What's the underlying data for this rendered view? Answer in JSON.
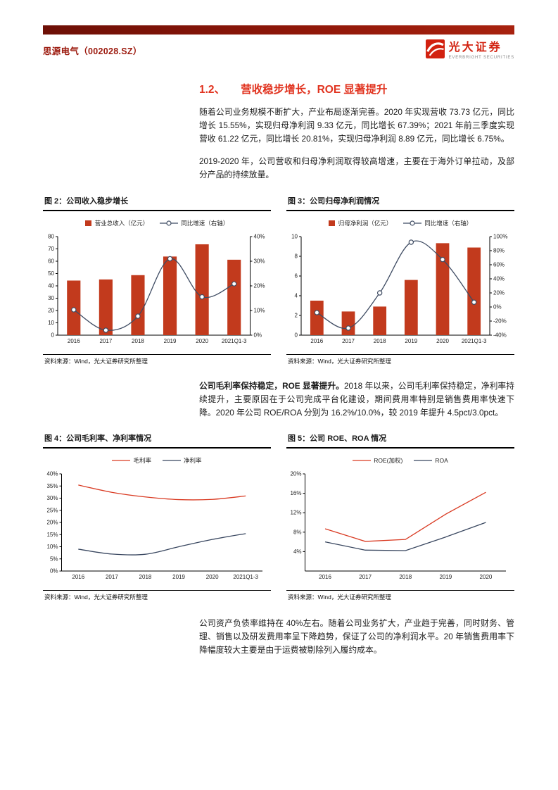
{
  "header": {
    "stock_name": "思源电气（002028.SZ）",
    "brand_name": "光大证券",
    "brand_subtitle": "EVERBRIGHT SECURITIES",
    "accent_color": "#8f1709",
    "brand_color": "#d2210f"
  },
  "section": {
    "number": "1.2、",
    "title": "营收稳步增长，ROE 显著提升"
  },
  "paragraphs": [
    "随着公司业务规模不断扩大，产业布局逐渐完善。2020 年实现营收 73.73 亿元，同比增长 15.55%，实现归母净利润 9.33 亿元，同比增长 67.39%；2021 年前三季度实现营收 61.22 亿元，同比增长 20.81%，实现归母净利润 8.89 亿元，同比增长 6.75%。",
    "2019-2020 年，公司营收和归母净利润取得较高增速，主要在于海外订单拉动，及部分产品的持续放量。"
  ],
  "mid_paragraph": {
    "bold": "公司毛利率保持稳定，ROE 显著提升。",
    "rest": "2018 年以来，公司毛利率保持稳定，净利率持续提升，主要原因在于公司完成平台化建设，期间费用率特别是销售费用率快速下降。2020 年公司 ROE/ROA 分别为 16.2%/10.0%，较 2019 年提升 4.5pct/3.0pct。"
  },
  "bottom_paragraph": "公司资产负债率维持在 40%左右。随着公司业务扩大，产业趋于完善，同时财务、管理、销售以及研发费用率呈下降趋势，保证了公司的净利润水平。20 年销售费用率下降幅度较大主要是由于运费被剔除列入履约成本。",
  "source_note": "资料来源：Wind，光大证券研究所整理",
  "chart_data": [
    {
      "figure_label": "图 2：公司收入稳步增长",
      "type": "bar+line",
      "categories": [
        "2016",
        "2017",
        "2018",
        "2019",
        "2020",
        "2021Q1-3"
      ],
      "series": [
        {
          "name": "营业总收入（亿元）",
          "kind": "bar",
          "axis": "left",
          "color": "#c23a1d",
          "values": [
            44.3,
            45.2,
            48.7,
            63.8,
            73.73,
            61.22
          ]
        },
        {
          "name": "同比增速（右轴）",
          "kind": "line",
          "axis": "right",
          "color": "#3f4c63",
          "marker": "circle",
          "smooth": true,
          "values": [
            10.3,
            2.0,
            7.7,
            31.0,
            15.55,
            20.81
          ]
        }
      ],
      "axes": {
        "left": {
          "min": 0,
          "max": 80,
          "ticks": [
            0,
            10,
            20,
            30,
            40,
            50,
            60,
            70,
            80
          ],
          "format": "int"
        },
        "right": {
          "min": 0,
          "max": 40,
          "ticks": [
            0,
            10,
            20,
            30,
            40
          ],
          "format": "pct"
        }
      },
      "legend_position": "top",
      "grid": false
    },
    {
      "figure_label": "图 3：公司归母净利润情况",
      "type": "bar+line",
      "categories": [
        "2016",
        "2017",
        "2018",
        "2019",
        "2020",
        "2021Q1-3"
      ],
      "series": [
        {
          "name": "归母净利润（亿元）",
          "kind": "bar",
          "axis": "left",
          "color": "#c23a1d",
          "values": [
            3.5,
            2.4,
            2.9,
            5.6,
            9.33,
            8.89
          ]
        },
        {
          "name": "同比增速（右轴）",
          "kind": "line",
          "axis": "right",
          "color": "#3f4c63",
          "marker": "circle",
          "smooth": true,
          "values": [
            -8.0,
            -30.0,
            20.0,
            92.0,
            67.39,
            6.75
          ]
        }
      ],
      "axes": {
        "left": {
          "min": 0,
          "max": 10,
          "ticks": [
            0,
            2,
            4,
            6,
            8,
            10
          ],
          "format": "int"
        },
        "right": {
          "min": -40,
          "max": 100,
          "ticks": [
            -40,
            -20,
            0,
            20,
            40,
            60,
            80,
            100
          ],
          "format": "pct"
        }
      },
      "legend_position": "top",
      "grid": false
    },
    {
      "figure_label": "图 4：公司毛利率、净利率情况",
      "type": "line",
      "categories": [
        "2016",
        "2017",
        "2018",
        "2019",
        "2020",
        "2021Q1-3"
      ],
      "series": [
        {
          "name": "毛利率",
          "kind": "line",
          "axis": "left",
          "color": "#d93a22",
          "smooth": true,
          "values": [
            35.4,
            32.4,
            30.5,
            29.4,
            29.5,
            30.9
          ]
        },
        {
          "name": "净利率",
          "kind": "line",
          "axis": "left",
          "color": "#38465f",
          "smooth": true,
          "values": [
            9.0,
            7.0,
            6.9,
            10.0,
            13.0,
            15.4
          ]
        }
      ],
      "axes": {
        "left": {
          "min": 0,
          "max": 40,
          "ticks": [
            0,
            5,
            10,
            15,
            20,
            25,
            30,
            35,
            40
          ],
          "format": "pct"
        }
      },
      "legend_position": "top",
      "grid": false
    },
    {
      "figure_label": "图 5：公司 ROE、ROA 情况",
      "type": "line",
      "categories": [
        "2016",
        "2017",
        "2018",
        "2019",
        "2020"
      ],
      "series": [
        {
          "name": "ROE(加权)",
          "kind": "line",
          "axis": "left",
          "color": "#d93a22",
          "smooth": false,
          "values": [
            8.7,
            6.1,
            6.5,
            11.7,
            16.2
          ]
        },
        {
          "name": "ROA",
          "kind": "line",
          "axis": "left",
          "color": "#38465f",
          "smooth": false,
          "values": [
            6.0,
            4.3,
            4.2,
            7.0,
            10.0
          ]
        }
      ],
      "axes": {
        "left": {
          "min": 0,
          "max": 20,
          "ticks": [
            4,
            8,
            12,
            16,
            20
          ],
          "format": "pct"
        }
      },
      "legend_position": "top",
      "grid": false
    }
  ]
}
